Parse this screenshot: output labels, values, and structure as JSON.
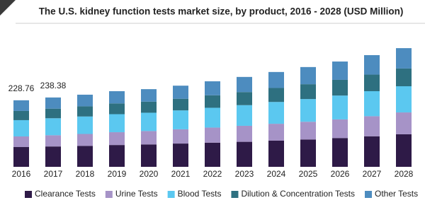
{
  "chart_data": {
    "type": "stacked_bar",
    "title": "The U.S. kidney function tests market size, by product, 2016 - 2028 (USD Million)",
    "categories": [
      "2016",
      "2017",
      "2018",
      "2019",
      "2020",
      "2021",
      "2022",
      "2023",
      "2024",
      "2025",
      "2026",
      "2027",
      "2028"
    ],
    "series": [
      {
        "name": "Clearance Tests",
        "color": "#2e1a47",
        "values": [
          68,
          70,
          72,
          75,
          77,
          80,
          83,
          86,
          90,
          94,
          99,
          105,
          112
        ]
      },
      {
        "name": "Urine Tests",
        "color": "#a693c7",
        "values": [
          36.5,
          38.5,
          41,
          44,
          46,
          49,
          52,
          55,
          58,
          61,
          64,
          69,
          75
        ]
      },
      {
        "name": "Blood Tests",
        "color": "#5bc8f0",
        "values": [
          56,
          58.5,
          60,
          62,
          63,
          65,
          68,
          71,
          75,
          78,
          82,
          86,
          90
        ]
      },
      {
        "name": "Dilution & Concentration Tests",
        "color": "#2e7080",
        "values": [
          31.6,
          33,
          35,
          37,
          38,
          40,
          43,
          45,
          48,
          51,
          54,
          57,
          61
        ]
      },
      {
        "name": "Other Tests",
        "color": "#4d8cbf",
        "values": [
          36.66,
          38.38,
          40,
          42,
          43,
          45,
          48,
          52,
          55,
          59,
          63,
          67,
          70
        ]
      }
    ],
    "total_labels": [
      228.76,
      238.38
    ],
    "legend": "bottom"
  }
}
